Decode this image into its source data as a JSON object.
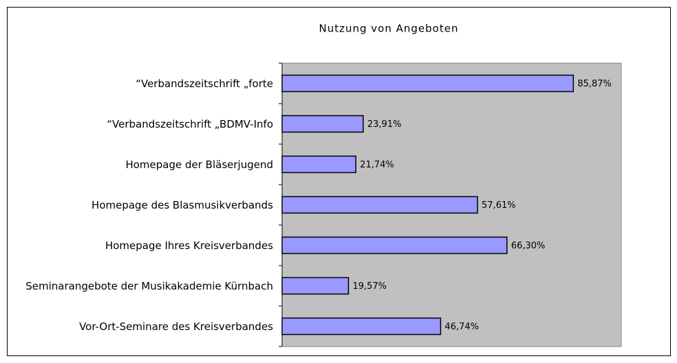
{
  "chart_data": {
    "type": "bar",
    "orientation": "horizontal",
    "title": "Nutzung von Angeboten",
    "categories": [
      "“Verbandszeitschrift „forte",
      "“Verbandszeitschrift „BDMV-Info",
      "Homepage der Bläserjugend",
      "Homepage des Blasmusikverbands",
      "Homepage Ihres Kreisverbandes",
      "Seminarangebote der Musikakademie Kürnbach",
      "Vor-Ort-Seminare des Kreisverbandes"
    ],
    "values": [
      85.87,
      23.91,
      21.74,
      57.61,
      66.3,
      19.57,
      46.74
    ],
    "value_labels": [
      "85,87%",
      "23,91%",
      "21,74%",
      "57,61%",
      "66,30%",
      "19,57%",
      "46,74%"
    ],
    "color": "#9999ff",
    "plot_background": "#c0c0c0",
    "xlim": [
      0,
      100
    ]
  }
}
